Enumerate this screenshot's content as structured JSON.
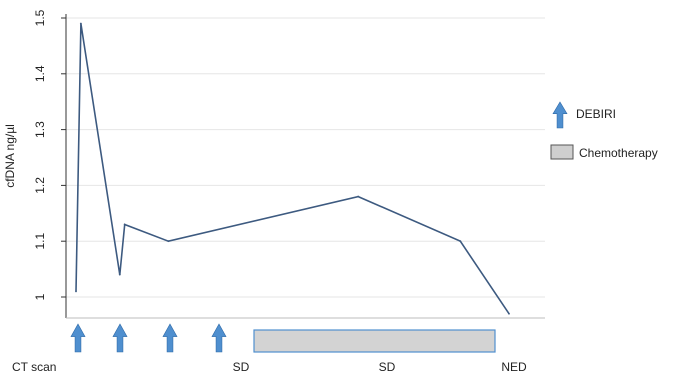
{
  "chart_data": {
    "type": "line",
    "title": "",
    "xlabel": "",
    "ylabel": "cfDNA ng/µl",
    "ylim": [
      0.97,
      1.5
    ],
    "yticks": [
      "1",
      "1.1",
      "1.2",
      "1.3",
      "1.4",
      "1.5"
    ],
    "grid": "horizontal",
    "series": [
      {
        "values": [
          {
            "x": 0,
            "y": 1.01
          },
          {
            "x": 1,
            "y": 1.49
          },
          {
            "x": 9,
            "y": 1.04
          },
          {
            "x": 10,
            "y": 1.13
          },
          {
            "x": 19,
            "y": 1.1
          },
          {
            "x": 58,
            "y": 1.18
          },
          {
            "x": 79,
            "y": 1.1
          },
          {
            "x": 89,
            "y": 0.97
          }
        ],
        "color": "#3d5a80"
      }
    ],
    "legend": {
      "placement": "right",
      "entries": [
        {
          "label": "DEBIRI",
          "symbol": "arrow",
          "color": "#4f8fcf"
        },
        {
          "label": "Chemotherapy",
          "symbol": "box",
          "color": "#cfcfcf"
        }
      ]
    },
    "debiri_at": [
      0.5,
      9.5,
      19.5,
      29.5
    ],
    "chemotherapy_span": [
      36,
      86
    ],
    "ct_scan": {
      "title": "CT scan",
      "labels": [
        {
          "x": 34,
          "text": "SD"
        },
        {
          "x": 63,
          "text": "SD"
        },
        {
          "x": 89,
          "text": "NED"
        }
      ]
    },
    "colors": {
      "line": "#3d5a80",
      "arrow": "#4f8fcf",
      "arrow_stroke": "#2f6aa8",
      "chemo_fill": "#d3d3d3",
      "chemo_stroke": "#4f8fcf",
      "axis": "#333333",
      "grid": "#e6e6e6"
    }
  }
}
